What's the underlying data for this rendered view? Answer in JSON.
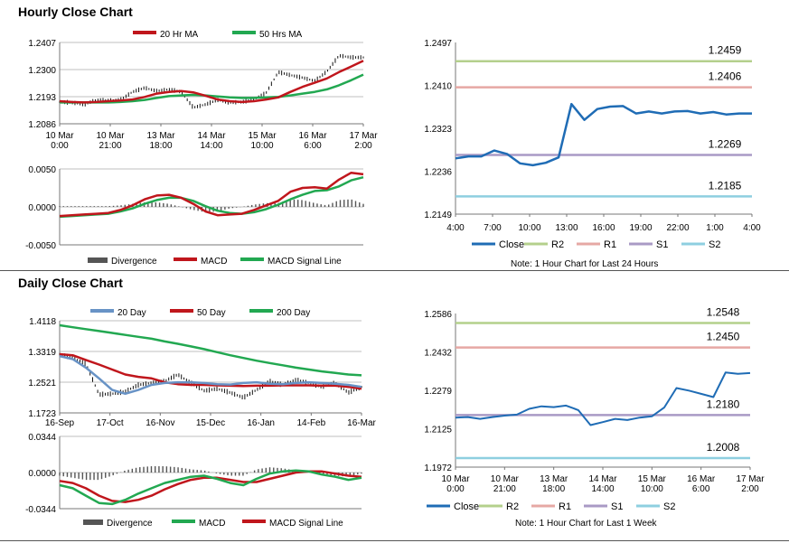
{
  "sections": {
    "hourly_title": "Hourly Close Chart",
    "daily_title": "Daily Close Chart"
  },
  "colors": {
    "ma20": "#c0161c",
    "ma50": "#22a851",
    "close_blue": "#1f6cb5",
    "r2": "#b4d08c",
    "r1": "#e6a8a4",
    "s1": "#a99ac5",
    "s2": "#8ecfe0",
    "day20": "#6893c6",
    "divergence": "#555555"
  },
  "chart_data": [
    {
      "id": "hourly-price",
      "type": "line",
      "title": "",
      "ylim": [
        1.2086,
        1.2407
      ],
      "ytick_labels": [
        "1.2407",
        "1.2300",
        "1.2193",
        "1.2086"
      ],
      "xtick_labels": [
        "10 Mar\n0:00",
        "10 Mar\n21:00",
        "13 Mar\n18:00",
        "14 Mar\n14:00",
        "15 Mar\n10:00",
        "16 Mar\n6:00",
        "17 Mar\n2:00"
      ],
      "legend": [
        "20 Hr MA",
        "50 Hrs MA"
      ],
      "series": [
        {
          "name": "20 Hr MA",
          "values": [
            1.2175,
            1.2172,
            1.217,
            1.2172,
            1.2175,
            1.2178,
            1.2182,
            1.2192,
            1.2205,
            1.2212,
            1.2215,
            1.221,
            1.2197,
            1.2182,
            1.2175,
            1.2172,
            1.2175,
            1.2182,
            1.219,
            1.2212,
            1.2232,
            1.2248,
            1.2265,
            1.229,
            1.2312,
            1.2335
          ]
        },
        {
          "name": "50 Hrs MA",
          "values": [
            1.217,
            1.217,
            1.217,
            1.217,
            1.217,
            1.2172,
            1.2175,
            1.218,
            1.2188,
            1.2195,
            1.2198,
            1.22,
            1.2198,
            1.2194,
            1.219,
            1.2188,
            1.2188,
            1.219,
            1.2192,
            1.2198,
            1.2205,
            1.2212,
            1.2222,
            1.2238,
            1.2258,
            1.228
          ]
        },
        {
          "name": "Close",
          "values": [
            1.2172,
            1.217,
            1.2162,
            1.218,
            1.2178,
            1.218,
            1.2212,
            1.2228,
            1.2215,
            1.2222,
            1.2212,
            1.215,
            1.2162,
            1.218,
            1.217,
            1.2172,
            1.2182,
            1.2208,
            1.229,
            1.2278,
            1.2268,
            1.2255,
            1.2292,
            1.2355,
            1.2348,
            1.2348
          ]
        }
      ]
    },
    {
      "id": "hourly-macd",
      "type": "line",
      "ylim": [
        -0.005,
        0.005
      ],
      "ytick_labels": [
        "0.0050",
        "0.0000",
        "-0.0050"
      ],
      "legend": [
        "Divergence",
        "MACD",
        "MACD Signal Line"
      ],
      "series": [
        {
          "name": "MACD",
          "values": [
            -0.0012,
            -0.0011,
            -0.001,
            -0.0009,
            -0.0008,
            -0.0004,
            0.0002,
            0.001,
            0.0015,
            0.0016,
            0.0012,
            0.0004,
            -0.0006,
            -0.0011,
            -0.001,
            -0.0009,
            -0.0004,
            0.0002,
            0.0008,
            0.002,
            0.0025,
            0.0026,
            0.0024,
            0.0036,
            0.0045,
            0.0043
          ]
        },
        {
          "name": "MACD Signal Line",
          "values": [
            -0.0013,
            -0.0012,
            -0.0011,
            -0.001,
            -0.0009,
            -0.0006,
            -0.0002,
            0.0004,
            0.0009,
            0.0012,
            0.0012,
            0.0008,
            0.0001,
            -0.0005,
            -0.0008,
            -0.0009,
            -0.0007,
            -0.0003,
            0.0003,
            0.001,
            0.0016,
            0.0021,
            0.0022,
            0.0027,
            0.0035,
            0.0039
          ]
        },
        {
          "name": "Divergence",
          "values": [
            0.0001,
            0.0001,
            0.0001,
            0.0001,
            0.0001,
            0.0002,
            0.0004,
            0.0006,
            0.0006,
            0.0004,
            0.0,
            -0.0004,
            -0.0007,
            -0.0006,
            -0.0002,
            0.0,
            0.0003,
            0.0005,
            0.0005,
            0.001,
            0.0009,
            0.0005,
            0.0002,
            0.0009,
            0.001,
            0.0004
          ]
        }
      ]
    },
    {
      "id": "hourly-24h",
      "type": "line",
      "ylim": [
        1.2149,
        1.2497
      ],
      "ytick_labels": [
        "1.2497",
        "1.2410",
        "1.2323",
        "1.2236",
        "1.2149"
      ],
      "xtick_labels": [
        "4:00",
        "7:00",
        "10:00",
        "13:00",
        "16:00",
        "19:00",
        "22:00",
        "1:00",
        "4:00"
      ],
      "legend": [
        "Close",
        "R2",
        "R1",
        "S1",
        "S2"
      ],
      "levels": [
        {
          "name": "R2",
          "value": 1.2459,
          "label": "1.2459"
        },
        {
          "name": "R1",
          "value": 1.2406,
          "label": "1.2406"
        },
        {
          "name": "S1",
          "value": 1.2269,
          "label": "1.2269"
        },
        {
          "name": "S2",
          "value": 1.2185,
          "label": "1.2185"
        }
      ],
      "series": [
        {
          "name": "Close",
          "values": [
            1.2262,
            1.2266,
            1.2266,
            1.2278,
            1.2271,
            1.2252,
            1.2248,
            1.2253,
            1.2264,
            1.2372,
            1.234,
            1.2362,
            1.2367,
            1.2368,
            1.2353,
            1.2357,
            1.2353,
            1.2357,
            1.2358,
            1.2353,
            1.2356,
            1.2351,
            1.2353,
            1.2353
          ]
        }
      ],
      "note": "Note: 1 Hour Chart for Last 24 Hours"
    },
    {
      "id": "daily-price",
      "type": "line",
      "ylim": [
        1.1723,
        1.4118
      ],
      "ytick_labels": [
        "1.4118",
        "1.3319",
        "1.2521",
        "1.1723"
      ],
      "xtick_labels": [
        "16-Sep",
        "17-Oct",
        "16-Nov",
        "15-Dec",
        "16-Jan",
        "14-Feb",
        "16-Mar"
      ],
      "legend": [
        "20 Day",
        "50 Day",
        "200 Day"
      ],
      "series": [
        {
          "name": "20 Day",
          "values": [
            1.32,
            1.312,
            1.29,
            1.262,
            1.232,
            1.222,
            1.232,
            1.245,
            1.25,
            1.252,
            1.252,
            1.25,
            1.247,
            1.246,
            1.25,
            1.252,
            1.248,
            1.247,
            1.25,
            1.252,
            1.25,
            1.248,
            1.245,
            1.24
          ]
        },
        {
          "name": "50 Day",
          "values": [
            1.325,
            1.322,
            1.31,
            1.298,
            1.285,
            1.272,
            1.266,
            1.262,
            1.252,
            1.247,
            1.245,
            1.245,
            1.244,
            1.243,
            1.242,
            1.243,
            1.243,
            1.244,
            1.244,
            1.244,
            1.243,
            1.243,
            1.24,
            1.235
          ]
        },
        {
          "name": "200 Day",
          "values": [
            1.4,
            1.395,
            1.39,
            1.385,
            1.38,
            1.375,
            1.37,
            1.365,
            1.358,
            1.352,
            1.345,
            1.338,
            1.33,
            1.322,
            1.315,
            1.308,
            1.302,
            1.296,
            1.29,
            1.285,
            1.28,
            1.276,
            1.272,
            1.27
          ]
        },
        {
          "name": "Close",
          "values": [
            1.325,
            1.315,
            1.3,
            1.22,
            1.222,
            1.228,
            1.245,
            1.25,
            1.255,
            1.272,
            1.25,
            1.23,
            1.235,
            1.225,
            1.212,
            1.232,
            1.255,
            1.245,
            1.258,
            1.25,
            1.24,
            1.25,
            1.225,
            1.24
          ]
        }
      ]
    },
    {
      "id": "daily-macd",
      "type": "line",
      "ylim": [
        -0.0344,
        0.0344
      ],
      "ytick_labels": [
        "0.0344",
        "0.0000",
        "-0.0344"
      ],
      "legend": [
        "Divergence",
        "MACD",
        "MACD Signal Line"
      ],
      "series": [
        {
          "name": "MACD",
          "values": [
            -0.012,
            -0.015,
            -0.022,
            -0.029,
            -0.03,
            -0.026,
            -0.02,
            -0.015,
            -0.01,
            -0.007,
            -0.004,
            -0.003,
            -0.006,
            -0.01,
            -0.012,
            -0.006,
            -0.001,
            0.001,
            0.002,
            0.001,
            -0.002,
            -0.004,
            -0.007,
            -0.005
          ]
        },
        {
          "name": "MACD Signal Line",
          "values": [
            -0.008,
            -0.01,
            -0.015,
            -0.022,
            -0.027,
            -0.028,
            -0.026,
            -0.022,
            -0.016,
            -0.011,
            -0.007,
            -0.005,
            -0.005,
            -0.007,
            -0.009,
            -0.009,
            -0.006,
            -0.003,
            0.0,
            0.001,
            0.001,
            -0.001,
            -0.003,
            -0.004
          ]
        },
        {
          "name": "Divergence",
          "values": [
            -0.003,
            -0.005,
            -0.007,
            -0.007,
            -0.003,
            0.002,
            0.005,
            0.006,
            0.006,
            0.005,
            0.003,
            0.002,
            -0.001,
            -0.003,
            -0.003,
            0.003,
            0.005,
            0.004,
            0.002,
            0.0,
            -0.002,
            -0.003,
            -0.004,
            -0.001
          ]
        }
      ]
    },
    {
      "id": "daily-week",
      "type": "line",
      "ylim": [
        1.1972,
        1.2586
      ],
      "ytick_labels": [
        "1.2586",
        "1.2432",
        "1.2279",
        "1.2125",
        "1.1972"
      ],
      "xtick_labels": [
        "10 Mar\n0:00",
        "10 Mar\n21:00",
        "13 Mar\n18:00",
        "14 Mar\n14:00",
        "15 Mar\n10:00",
        "16 Mar\n6:00",
        "17 Mar\n2:00"
      ],
      "legend": [
        "Close",
        "R2",
        "R1",
        "S1",
        "S2"
      ],
      "levels": [
        {
          "name": "R2",
          "value": 1.2548,
          "label": "1.2548"
        },
        {
          "name": "R1",
          "value": 1.245,
          "label": "1.2450"
        },
        {
          "name": "S1",
          "value": 1.218,
          "label": "1.2180"
        },
        {
          "name": "S2",
          "value": 1.2008,
          "label": "1.2008"
        }
      ],
      "series": [
        {
          "name": "Close",
          "values": [
            1.217,
            1.2172,
            1.2165,
            1.2172,
            1.2178,
            1.2182,
            1.2205,
            1.2215,
            1.2212,
            1.2218,
            1.22,
            1.214,
            1.2152,
            1.2165,
            1.216,
            1.217,
            1.2175,
            1.221,
            1.2288,
            1.2278,
            1.2265,
            1.2252,
            1.235,
            1.2345,
            1.2348
          ]
        }
      ],
      "note": "Note: 1 Hour Chart for Last 1 Week"
    }
  ]
}
